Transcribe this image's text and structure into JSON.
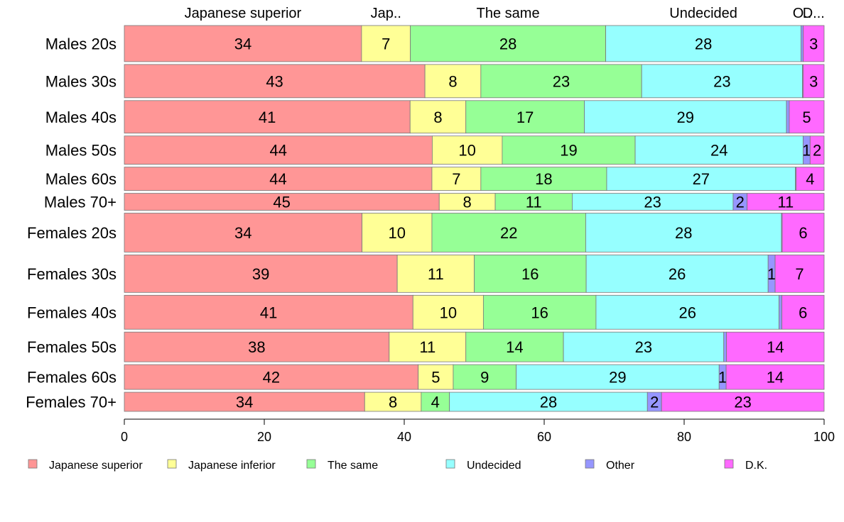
{
  "chart_data": {
    "type": "bar",
    "orientation": "horizontal",
    "stacked": true,
    "title": "",
    "xlabel": "",
    "ylabel": "",
    "xlim": [
      0,
      100
    ],
    "x_ticks": [
      "0",
      "20",
      "40",
      "60",
      "80",
      "100"
    ],
    "grid": false,
    "legend_position": "bottom",
    "categories": [
      "Males 20s",
      "Males 30s",
      "Males 40s",
      "Males 50s",
      "Males 60s",
      "Males 70+",
      "Females 20s",
      "Females 30s",
      "Females 40s",
      "Females 50s",
      "Females 60s",
      "Females 70+"
    ],
    "top_labels": [
      "Japanese superior",
      "Jap..",
      "The same",
      "Undecided",
      "O..",
      "D..."
    ],
    "series": [
      {
        "name": "Japanese superior",
        "color": "#ff9696",
        "values": [
          34,
          43,
          41,
          44,
          44,
          45,
          34,
          39,
          41,
          38,
          42,
          34
        ]
      },
      {
        "name": "Japanese inferior",
        "color": "#ffff96",
        "values": [
          7,
          8,
          8,
          10,
          7,
          8,
          10,
          11,
          10,
          11,
          5,
          8
        ]
      },
      {
        "name": "The same",
        "color": "#96ff96",
        "values": [
          28,
          23,
          17,
          19,
          18,
          11,
          22,
          16,
          16,
          14,
          9,
          4
        ]
      },
      {
        "name": "Undecided",
        "color": "#96ffff",
        "values": [
          28,
          23,
          29,
          24,
          27,
          23,
          28,
          26,
          26,
          23,
          29,
          28
        ]
      },
      {
        "name": "Other",
        "color": "#9696ff",
        "values": [
          0.3,
          0.1,
          0.4,
          1,
          0.1,
          2,
          0.1,
          1,
          0.4,
          0.4,
          1,
          2
        ]
      },
      {
        "name": "D.K.",
        "color": "#ff69ff",
        "values": [
          3,
          3,
          5,
          2,
          4,
          11,
          6,
          7,
          6,
          14,
          14,
          23
        ]
      }
    ],
    "value_labels": [
      [
        "34",
        "7",
        "28",
        "28",
        "",
        "3"
      ],
      [
        "43",
        "8",
        "23",
        "23",
        "",
        "3"
      ],
      [
        "41",
        "8",
        "17",
        "29",
        "",
        "5"
      ],
      [
        "44",
        "10",
        "19",
        "24",
        "1",
        "2"
      ],
      [
        "44",
        "7",
        "18",
        "27",
        "",
        "4"
      ],
      [
        "45",
        "8",
        "11",
        "23",
        "2",
        "11"
      ],
      [
        "34",
        "10",
        "22",
        "28",
        "",
        "6"
      ],
      [
        "39",
        "11",
        "16",
        "26",
        "1",
        "7"
      ],
      [
        "41",
        "10",
        "16",
        "26",
        "",
        "6"
      ],
      [
        "38",
        "11",
        "14",
        "23",
        "",
        "14"
      ],
      [
        "42",
        "5",
        "9",
        "29",
        "1",
        "14"
      ],
      [
        "34",
        "8",
        "4",
        "28",
        "2",
        "23"
      ]
    ],
    "row_weights": [
      51,
      47,
      46,
      40,
      33,
      24,
      55,
      53,
      48,
      42,
      35,
      27
    ]
  }
}
